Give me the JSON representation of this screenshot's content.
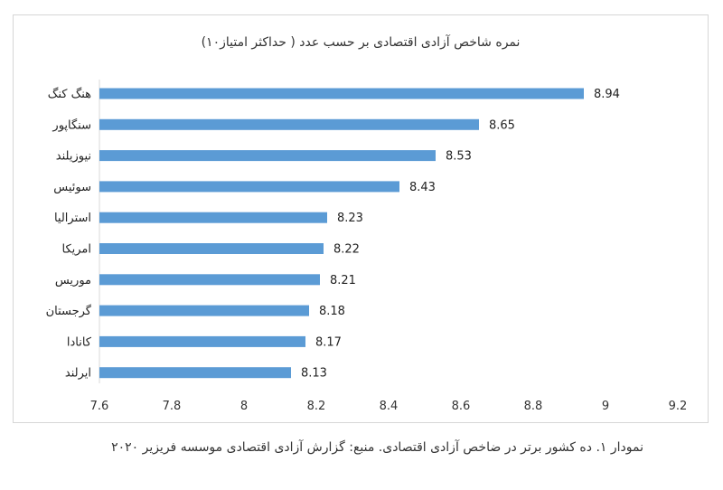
{
  "chart_data": {
    "type": "bar",
    "orientation": "horizontal",
    "title": "نمره شاخص آزادی اقتصادی بر حسب عدد ( حداکثر امتیاز۱۰)",
    "categories": [
      "هنگ کنگ",
      "سنگاپور",
      "نیوزیلند",
      "سوئیس",
      "استرالیا",
      "امریکا",
      "موریس",
      "گرجستان",
      "کانادا",
      "ایرلند"
    ],
    "values": [
      8.94,
      8.65,
      8.53,
      8.43,
      8.23,
      8.22,
      8.21,
      8.18,
      8.17,
      8.13
    ],
    "data_labels": [
      "8.94",
      "8.65",
      "8.53",
      "8.43",
      "8.23",
      "8.22",
      "8.21",
      "8.18",
      "8.17",
      "8.13"
    ],
    "xlim": [
      7.6,
      9.2
    ],
    "xticks": [
      "7.6",
      "7.8",
      "8",
      "8.2",
      "8.4",
      "8.6",
      "8.8",
      "9",
      "9.2"
    ],
    "xlabel": "",
    "ylabel": "",
    "grid": false,
    "bar_color": "#5b9bd5"
  },
  "caption": "نمودار ۱. ده کشور برتر در ضاخص آزادی اقتصادی. منبع: گزارش آزادی اقتصادی موسسه فریزیر ۲۰۲۰"
}
